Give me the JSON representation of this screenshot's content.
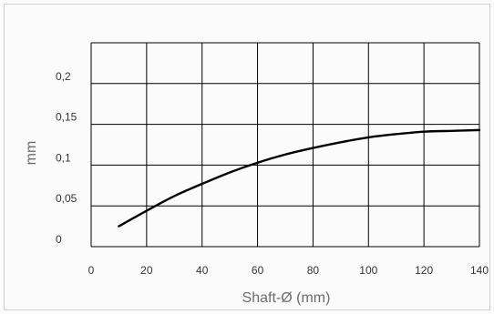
{
  "chart_data": {
    "type": "line",
    "xlabel": "Shaft-Ø (mm)",
    "ylabel": "mm",
    "xlim": [
      0,
      140
    ],
    "ylim": [
      0,
      0.25
    ],
    "grid": true,
    "x_ticks": [
      0,
      20,
      40,
      60,
      80,
      100,
      120,
      140
    ],
    "x_tick_labels": [
      "0",
      "20",
      "40",
      "60",
      "80",
      "100",
      "120",
      "140"
    ],
    "y_ticks": [
      0,
      0.05,
      0.1,
      0.15,
      0.2
    ],
    "y_tick_labels": [
      "0",
      "0,05",
      "0,1",
      "0,15",
      "0,2"
    ],
    "series": [
      {
        "x": [
          10,
          20,
          30,
          40,
          50,
          60,
          70,
          80,
          90,
          100,
          110,
          120,
          130,
          140
        ],
        "y": [
          0.025,
          0.044,
          0.062,
          0.077,
          0.091,
          0.103,
          0.113,
          0.121,
          0.128,
          0.134,
          0.138,
          0.141,
          0.142,
          0.143
        ],
        "color": "#000000"
      }
    ]
  }
}
